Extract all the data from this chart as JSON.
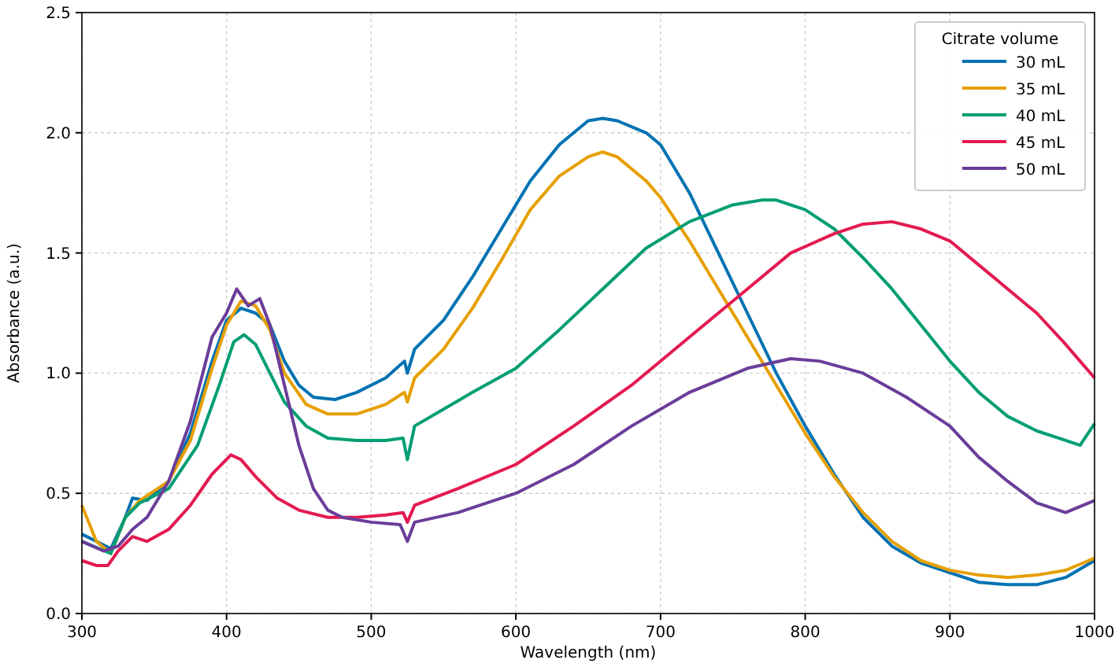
{
  "chart_data": {
    "type": "line",
    "xlabel": "Wavelength (nm)",
    "ylabel": "Absorbance (a.u.)",
    "legend_title": "Citrate volume",
    "legend": "top right",
    "grid": true,
    "line_style": "solid",
    "xlim": [
      300,
      1000
    ],
    "ylim": [
      0,
      2.5
    ],
    "xticks": [
      300,
      400,
      500,
      600,
      700,
      800,
      900,
      1000
    ],
    "yticks": [
      {
        "value": 0,
        "label": "0.0"
      },
      0.5,
      {
        "value": 1,
        "label": "1.0"
      },
      1.5,
      {
        "value": 2,
        "label": "2.0"
      },
      2.5
    ],
    "series": [
      {
        "name": "30 mL",
        "color": "#0072b2",
        "x": [
          300,
          310,
          320,
          330,
          335,
          345,
          360,
          375,
          390,
          400,
          410,
          420,
          430,
          440,
          450,
          460,
          475,
          490,
          510,
          523,
          525,
          530,
          550,
          570,
          590,
          610,
          630,
          650,
          660,
          670,
          690,
          700,
          720,
          740,
          760,
          780,
          800,
          820,
          840,
          860,
          880,
          900,
          920,
          940,
          960,
          980,
          1000
        ],
        "values": [
          0.33,
          0.3,
          0.27,
          0.4,
          0.48,
          0.47,
          0.55,
          0.75,
          1.05,
          1.22,
          1.27,
          1.25,
          1.2,
          1.05,
          0.95,
          0.9,
          0.89,
          0.92,
          0.98,
          1.05,
          1.0,
          1.1,
          1.22,
          1.4,
          1.6,
          1.8,
          1.95,
          2.05,
          2.06,
          2.05,
          2.0,
          1.95,
          1.75,
          1.5,
          1.25,
          1.0,
          0.78,
          0.58,
          0.4,
          0.28,
          0.21,
          0.17,
          0.13,
          0.12,
          0.12,
          0.15,
          0.22
        ]
      },
      {
        "name": "35 mL",
        "color": "#e69f00",
        "x": [
          300,
          310,
          320,
          330,
          340,
          360,
          375,
          390,
          400,
          410,
          420,
          430,
          440,
          455,
          470,
          490,
          510,
          523,
          525,
          530,
          550,
          570,
          590,
          610,
          630,
          650,
          660,
          670,
          690,
          700,
          720,
          740,
          760,
          780,
          800,
          820,
          840,
          860,
          880,
          900,
          920,
          940,
          960,
          980,
          1000
        ],
        "values": [
          0.45,
          0.3,
          0.25,
          0.4,
          0.47,
          0.55,
          0.72,
          1.02,
          1.2,
          1.3,
          1.28,
          1.18,
          1.0,
          0.87,
          0.83,
          0.83,
          0.87,
          0.92,
          0.88,
          0.98,
          1.1,
          1.27,
          1.47,
          1.68,
          1.82,
          1.9,
          1.92,
          1.9,
          1.8,
          1.73,
          1.55,
          1.35,
          1.15,
          0.95,
          0.75,
          0.57,
          0.42,
          0.3,
          0.22,
          0.18,
          0.16,
          0.15,
          0.16,
          0.18,
          0.23
        ]
      },
      {
        "name": "40 mL",
        "color": "#009e73",
        "x": [
          300,
          320,
          330,
          340,
          360,
          380,
          395,
          405,
          412,
          420,
          430,
          440,
          455,
          470,
          490,
          510,
          522,
          525,
          530,
          550,
          570,
          600,
          630,
          660,
          690,
          720,
          750,
          770,
          780,
          800,
          820,
          840,
          860,
          880,
          900,
          920,
          940,
          960,
          980,
          990,
          1000
        ],
        "values": [
          0.3,
          0.25,
          0.4,
          0.46,
          0.52,
          0.7,
          0.95,
          1.13,
          1.16,
          1.12,
          1.0,
          0.88,
          0.78,
          0.73,
          0.72,
          0.72,
          0.73,
          0.64,
          0.78,
          0.85,
          0.92,
          1.02,
          1.18,
          1.35,
          1.52,
          1.63,
          1.7,
          1.72,
          1.72,
          1.68,
          1.6,
          1.48,
          1.35,
          1.2,
          1.05,
          0.92,
          0.82,
          0.76,
          0.72,
          0.7,
          0.79
        ]
      },
      {
        "name": "45 mL",
        "color": "#e31a50",
        "x": [
          300,
          310,
          318,
          325,
          335,
          345,
          360,
          375,
          390,
          403,
          410,
          420,
          435,
          450,
          470,
          490,
          510,
          522,
          525,
          530,
          560,
          600,
          640,
          680,
          720,
          760,
          790,
          820,
          840,
          860,
          880,
          900,
          920,
          940,
          960,
          980,
          990,
          1000
        ],
        "values": [
          0.22,
          0.2,
          0.2,
          0.26,
          0.32,
          0.3,
          0.35,
          0.45,
          0.58,
          0.66,
          0.64,
          0.57,
          0.48,
          0.43,
          0.4,
          0.4,
          0.41,
          0.42,
          0.38,
          0.45,
          0.52,
          0.62,
          0.78,
          0.95,
          1.15,
          1.35,
          1.5,
          1.58,
          1.62,
          1.63,
          1.6,
          1.55,
          1.45,
          1.35,
          1.25,
          1.12,
          1.05,
          0.98
        ]
      },
      {
        "name": "50 mL",
        "color": "#6a3d9a",
        "x": [
          300,
          315,
          325,
          335,
          345,
          360,
          375,
          390,
          400,
          407,
          415,
          423,
          430,
          440,
          450,
          460,
          470,
          480,
          500,
          520,
          525,
          530,
          560,
          600,
          640,
          680,
          720,
          760,
          790,
          810,
          840,
          870,
          900,
          920,
          940,
          960,
          980,
          1000
        ],
        "values": [
          0.3,
          0.26,
          0.28,
          0.35,
          0.4,
          0.55,
          0.8,
          1.15,
          1.25,
          1.35,
          1.28,
          1.31,
          1.2,
          0.95,
          0.7,
          0.52,
          0.43,
          0.4,
          0.38,
          0.37,
          0.3,
          0.38,
          0.42,
          0.5,
          0.62,
          0.78,
          0.92,
          1.02,
          1.06,
          1.05,
          1.0,
          0.9,
          0.78,
          0.65,
          0.55,
          0.46,
          0.42,
          0.47
        ]
      }
    ]
  }
}
